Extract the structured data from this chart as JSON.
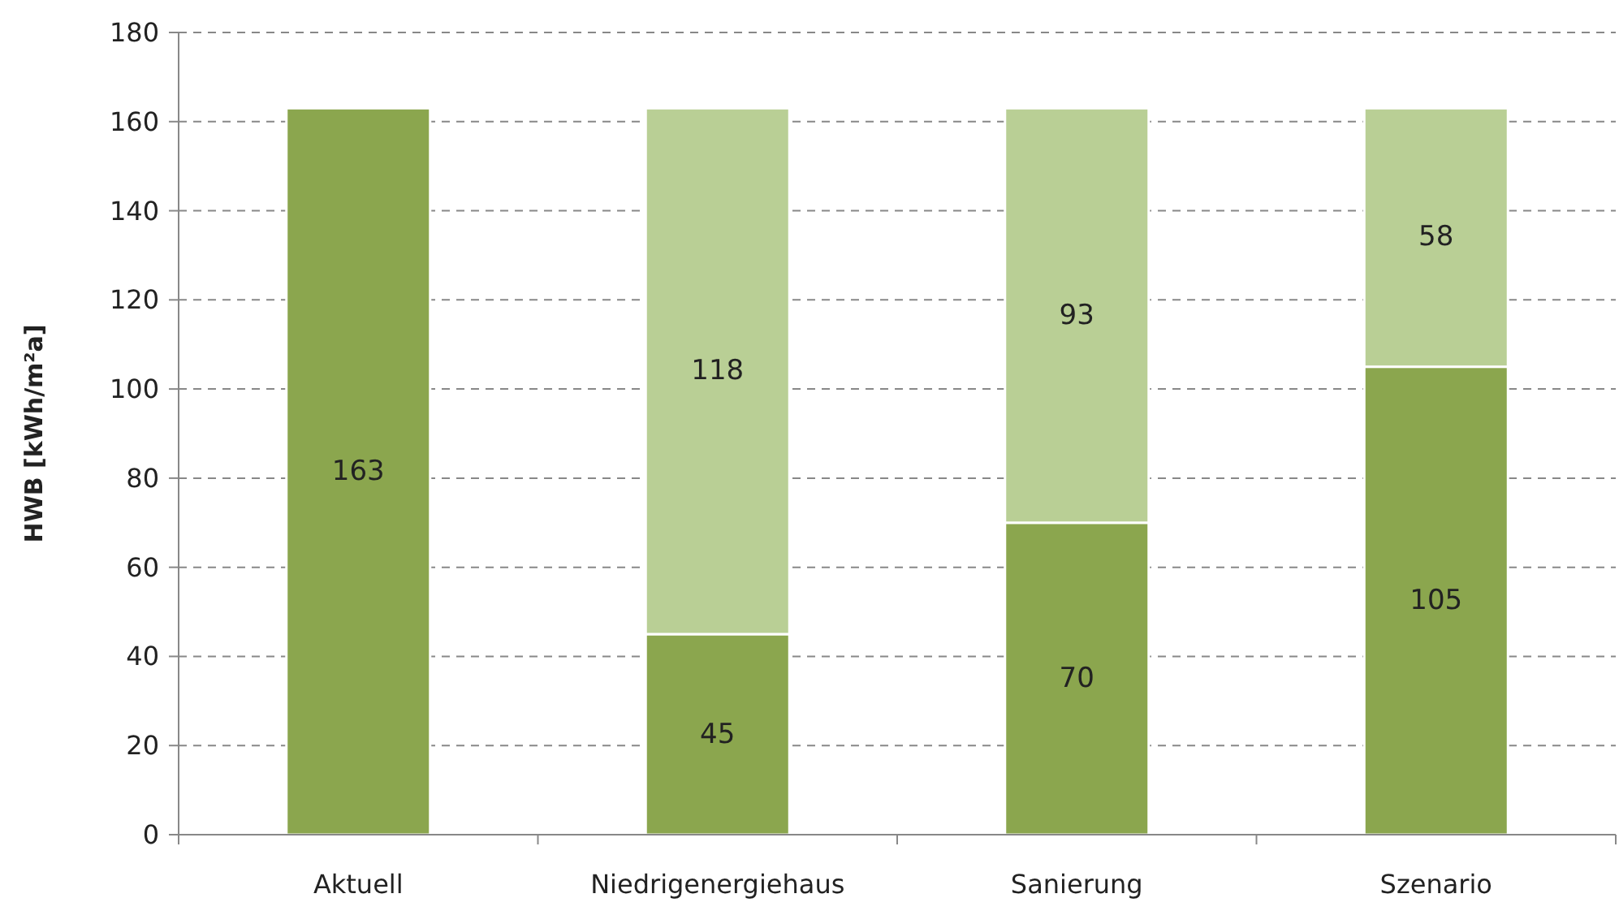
{
  "chart_data": {
    "type": "bar",
    "ylabel": "HWB [kWh/m²a]",
    "categories": [
      "Aktuell",
      "Niedrigenergiehaus",
      "Sanierung",
      "Szenario"
    ],
    "series": [
      {
        "color": "#8ba64e",
        "values": [
          163,
          45,
          70,
          105
        ]
      },
      {
        "color": "#b9cf95",
        "values": [
          null,
          118,
          93,
          58
        ]
      }
    ],
    "stacked": true,
    "ylim": [
      0,
      180
    ],
    "yticks": [
      0,
      20,
      40,
      60,
      80,
      100,
      120,
      140,
      160,
      180
    ],
    "grid": "y",
    "data_labels": true
  }
}
